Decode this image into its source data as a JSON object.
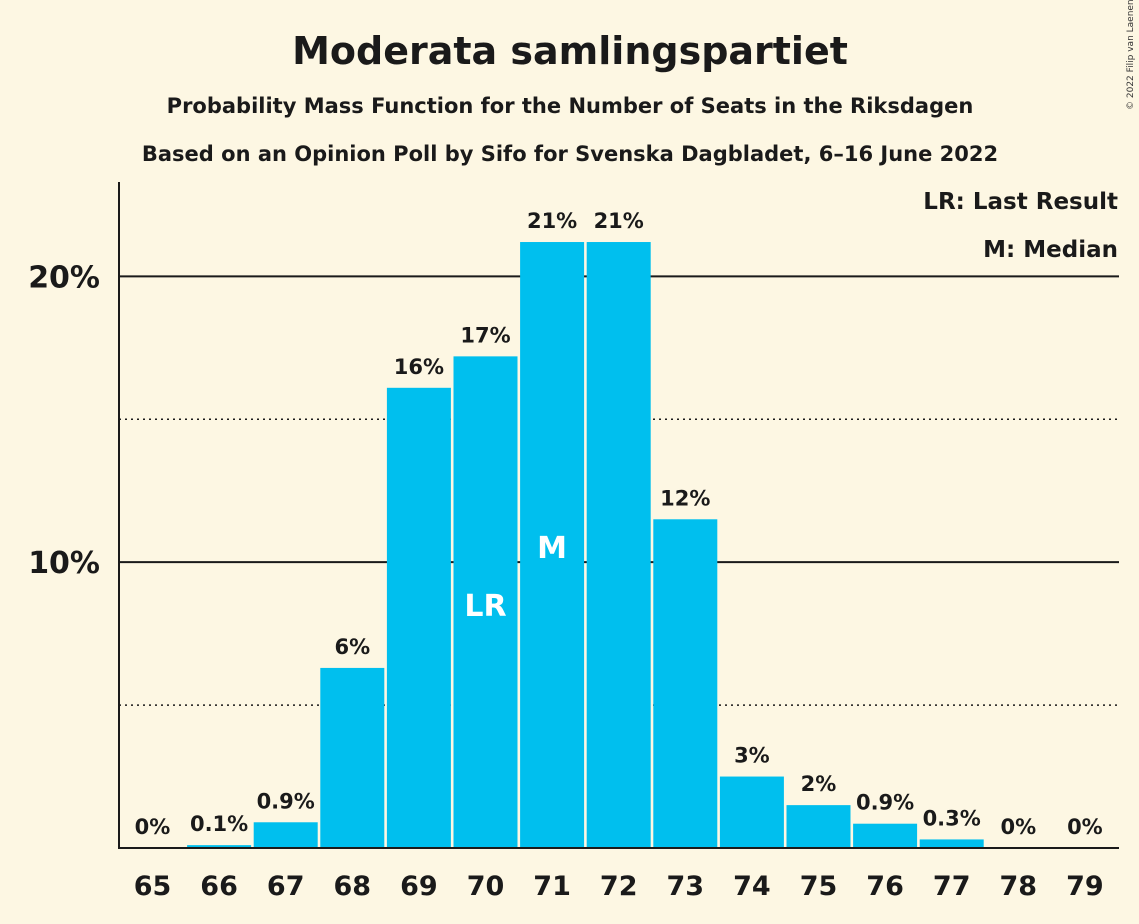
{
  "chart_data": {
    "type": "bar",
    "title": "Moderata samlingspartiet",
    "subtitle": "Probability Mass Function for the Number of Seats in the Riksdagen",
    "subtitle2": "Based on an Opinion Poll by Sifo for Svenska Dagbladet, 6–16 June 2022",
    "copyright": "© 2022 Filip van Laenen",
    "categories": [
      "65",
      "66",
      "67",
      "68",
      "69",
      "70",
      "71",
      "72",
      "73",
      "74",
      "75",
      "76",
      "77",
      "78",
      "79"
    ],
    "values": [
      0,
      0.1,
      0.9,
      6.3,
      16.1,
      17.2,
      21.2,
      21.2,
      11.5,
      2.5,
      1.5,
      0.85,
      0.3,
      0,
      0
    ],
    "value_labels": [
      "0%",
      "0.1%",
      "0.9%",
      "6%",
      "16%",
      "17%",
      "21%",
      "21%",
      "12%",
      "3%",
      "2%",
      "0.9%",
      "0.3%",
      "0%",
      "0%"
    ],
    "bar_color": "#00bfee",
    "ylim": [
      0,
      23.3
    ],
    "major_ticks": [
      10,
      20
    ],
    "major_tick_labels": [
      "10%",
      "20%"
    ],
    "minor_gridlines": [
      5,
      15
    ],
    "markers": [
      {
        "category": "70",
        "label": "LR"
      },
      {
        "category": "71",
        "label": "M"
      }
    ],
    "legend": {
      "position": "top-right",
      "items": [
        "LR: Last Result",
        "M: Median"
      ]
    }
  }
}
